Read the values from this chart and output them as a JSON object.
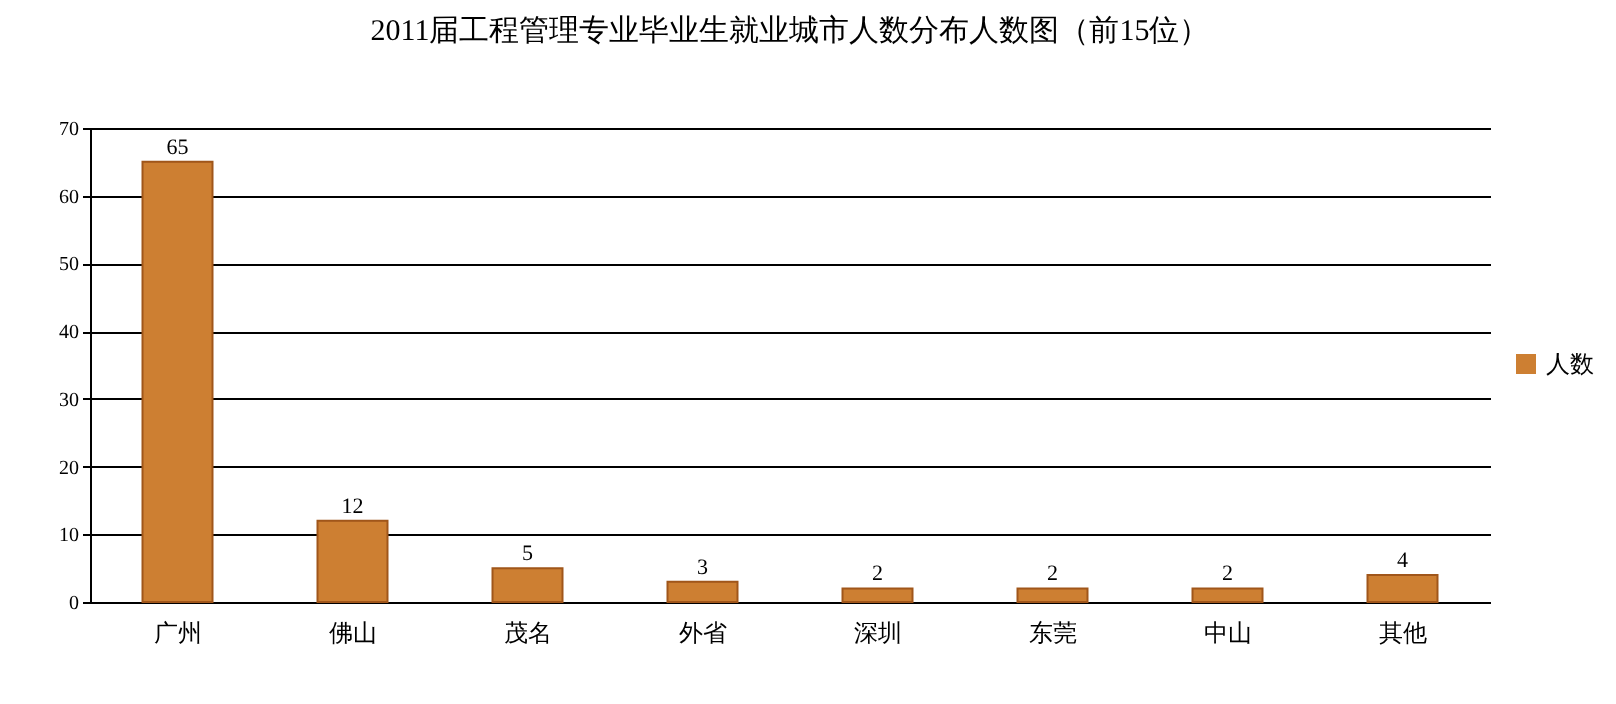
{
  "chart_data": {
    "type": "bar",
    "title": "2011届工程管理专业毕业生就业城市人数分布人数图（前15位）",
    "categories": [
      "广州",
      "佛山",
      "茂名",
      "外省",
      "深圳",
      "东莞",
      "中山",
      "其他"
    ],
    "series": [
      {
        "name": "人数",
        "color": "#cd7f32",
        "values": [
          65,
          12,
          5,
          3,
          2,
          2,
          2,
          4
        ]
      }
    ],
    "ylim": [
      0,
      70
    ],
    "yticks": [
      0,
      10,
      20,
      30,
      40,
      50,
      60,
      70
    ],
    "grid": "y",
    "legend": "right",
    "data_labels": true
  }
}
